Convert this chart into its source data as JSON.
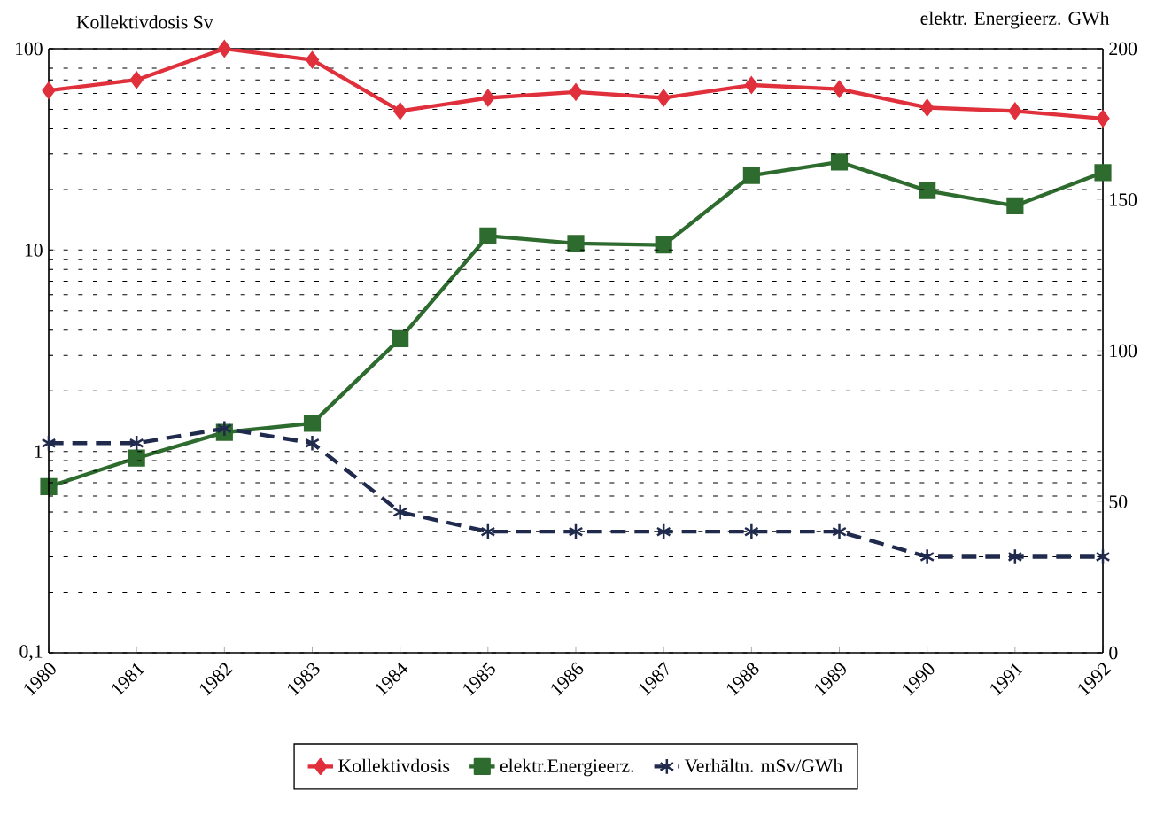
{
  "chart_data": {
    "type": "line",
    "xlabel": null,
    "ylabel": "Kollektivdosis Sv",
    "y2label": "elektr. Energieerz. GWh",
    "categories": [
      "1980",
      "1981",
      "1982",
      "1983",
      "1984",
      "1985",
      "1986",
      "1987",
      "1988",
      "1989",
      "1990",
      "1991",
      "1992"
    ],
    "series": [
      {
        "name": "Kollektivdosis",
        "color": "#e0303c",
        "marker": "diamond",
        "line_style": "solid",
        "values": [
          62,
          70,
          100,
          88,
          49,
          57,
          61,
          57,
          66,
          63,
          51,
          49,
          45
        ]
      },
      {
        "name": "elektr.Energieerz.",
        "color": "#2e6b2e",
        "marker": "square",
        "line_style": "solid",
        "axis": "y2",
        "values": [
          55,
          64.5,
          73,
          76,
          104,
          138,
          135.5,
          135,
          158,
          162.5,
          153,
          148,
          159
        ]
      },
      {
        "name": "Verhältn. mSv/GWh",
        "color": "#1f2a4d",
        "marker": "cross",
        "line_style": "dashed",
        "values": [
          1.1,
          1.1,
          1.3,
          1.1,
          0.5,
          0.4,
          0.4,
          0.4,
          0.4,
          0.4,
          0.3,
          0.3,
          0.3
        ]
      }
    ],
    "log": "y",
    "ylim": [
      0.1,
      100
    ],
    "yticks": [
      {
        "value": 0.1,
        "label": "0,1"
      },
      1,
      10,
      100
    ],
    "y2lim": [
      0,
      200
    ],
    "y2ticks": [
      0,
      50,
      100,
      150,
      200
    ],
    "grid": "y",
    "legend": "bottom"
  }
}
